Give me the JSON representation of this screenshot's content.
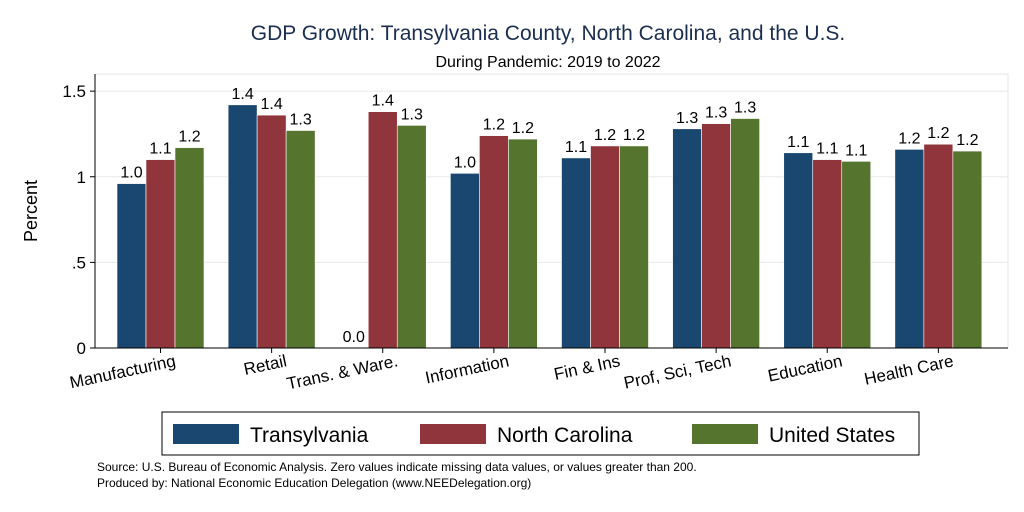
{
  "chart_data": {
    "type": "bar",
    "title": "GDP Growth: Transylvania County, North Carolina, and the U.S.",
    "subtitle": "During Pandemic: 2019 to 2022",
    "ylabel": "Percent",
    "xlabel": "",
    "ylim": [
      0,
      1.6
    ],
    "yticks": [
      0,
      0.5,
      1,
      1.5
    ],
    "ytick_labels": [
      "0",
      ".5",
      "1",
      "1.5"
    ],
    "grid": true,
    "legend_position": "bottom",
    "categories": [
      "Manufacturing",
      "Retail",
      "Trans. & Ware.",
      "Information",
      "Fin & Ins",
      "Prof, Sci, Tech",
      "Education",
      "Health Care"
    ],
    "series": [
      {
        "name": "Transylvania",
        "color": "#1a476f",
        "values": [
          0.96,
          1.42,
          0.0,
          1.02,
          1.11,
          1.28,
          1.14,
          1.16
        ],
        "labels": [
          "1.0",
          "1.4",
          "0.0",
          "1.0",
          "1.1",
          "1.3",
          "1.1",
          "1.2"
        ]
      },
      {
        "name": "North Carolina",
        "color": "#90353b",
        "values": [
          1.1,
          1.36,
          1.38,
          1.24,
          1.18,
          1.31,
          1.1,
          1.19
        ],
        "labels": [
          "1.1",
          "1.4",
          "1.4",
          "1.2",
          "1.2",
          "1.3",
          "1.1",
          "1.2"
        ]
      },
      {
        "name": "United States",
        "color": "#55752f",
        "values": [
          1.17,
          1.27,
          1.3,
          1.22,
          1.18,
          1.34,
          1.09,
          1.15
        ],
        "labels": [
          "1.2",
          "1.3",
          "1.3",
          "1.2",
          "1.2",
          "1.3",
          "1.1",
          "1.2"
        ]
      }
    ],
    "notes": [
      "Source: U.S. Bureau of Economic Analysis. Zero values indicate missing data values, or values greater than 200.",
      "Produced by: National Economic Education Delegation (www.NEEDelegation.org)"
    ]
  }
}
